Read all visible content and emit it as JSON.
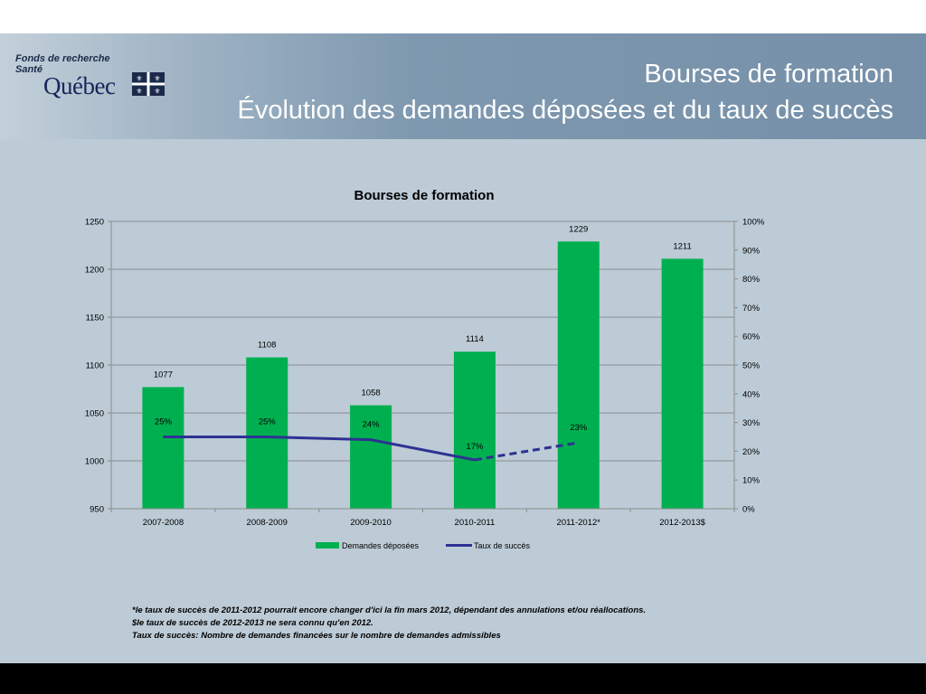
{
  "slide": {
    "logo_line1": "Fonds de recherche",
    "logo_line2": "Santé",
    "logo_quebec": "Québec",
    "title_line1": "Bourses de formation",
    "title_line2": "Évolution des demandes déposées et du taux de succès"
  },
  "chart_data": {
    "type": "bar",
    "title": "Bourses de formation",
    "categories": [
      "2007-2008",
      "2008-2009",
      "2009-2010",
      "2010-2011",
      "2011-2012*",
      "2012-2013$"
    ],
    "series": [
      {
        "name": "Demandes déposées",
        "type": "bar",
        "axis": "left",
        "color": "#00b050",
        "values": [
          1077,
          1108,
          1058,
          1114,
          1229,
          1211
        ],
        "labels": [
          "1077",
          "1108",
          "1058",
          "1114",
          "1229",
          "1211"
        ]
      },
      {
        "name": "Taux de succès",
        "type": "line",
        "axis": "right",
        "color": "#2e3192",
        "values": [
          25,
          25,
          24,
          17,
          23,
          null
        ],
        "labels": [
          "25%",
          "25%",
          "24%",
          "17%",
          "23%",
          ""
        ],
        "dashed_from_index": 3
      }
    ],
    "y_left": {
      "min": 950,
      "max": 1250,
      "ticks": [
        "950",
        "1000",
        "1050",
        "1100",
        "1150",
        "1200",
        "1250"
      ]
    },
    "y_right": {
      "min": 0,
      "max": 100,
      "ticks": [
        "0%",
        "10%",
        "20%",
        "30%",
        "40%",
        "50%",
        "60%",
        "70%",
        "80%",
        "90%",
        "100%"
      ]
    },
    "grid": true,
    "legend_position": "bottom"
  },
  "notes": {
    "line1": "*le taux de succès de 2011-2012 pourrait encore changer d'ici la fin mars 2012, dépendant des annulations et/ou réallocations.",
    "line2": "$le taux de succès de 2012-2013 ne sera connu qu'en 2012.",
    "line3": "Taux de succès: Nombre de demandes financées sur le nombre de demandes admissibles"
  }
}
